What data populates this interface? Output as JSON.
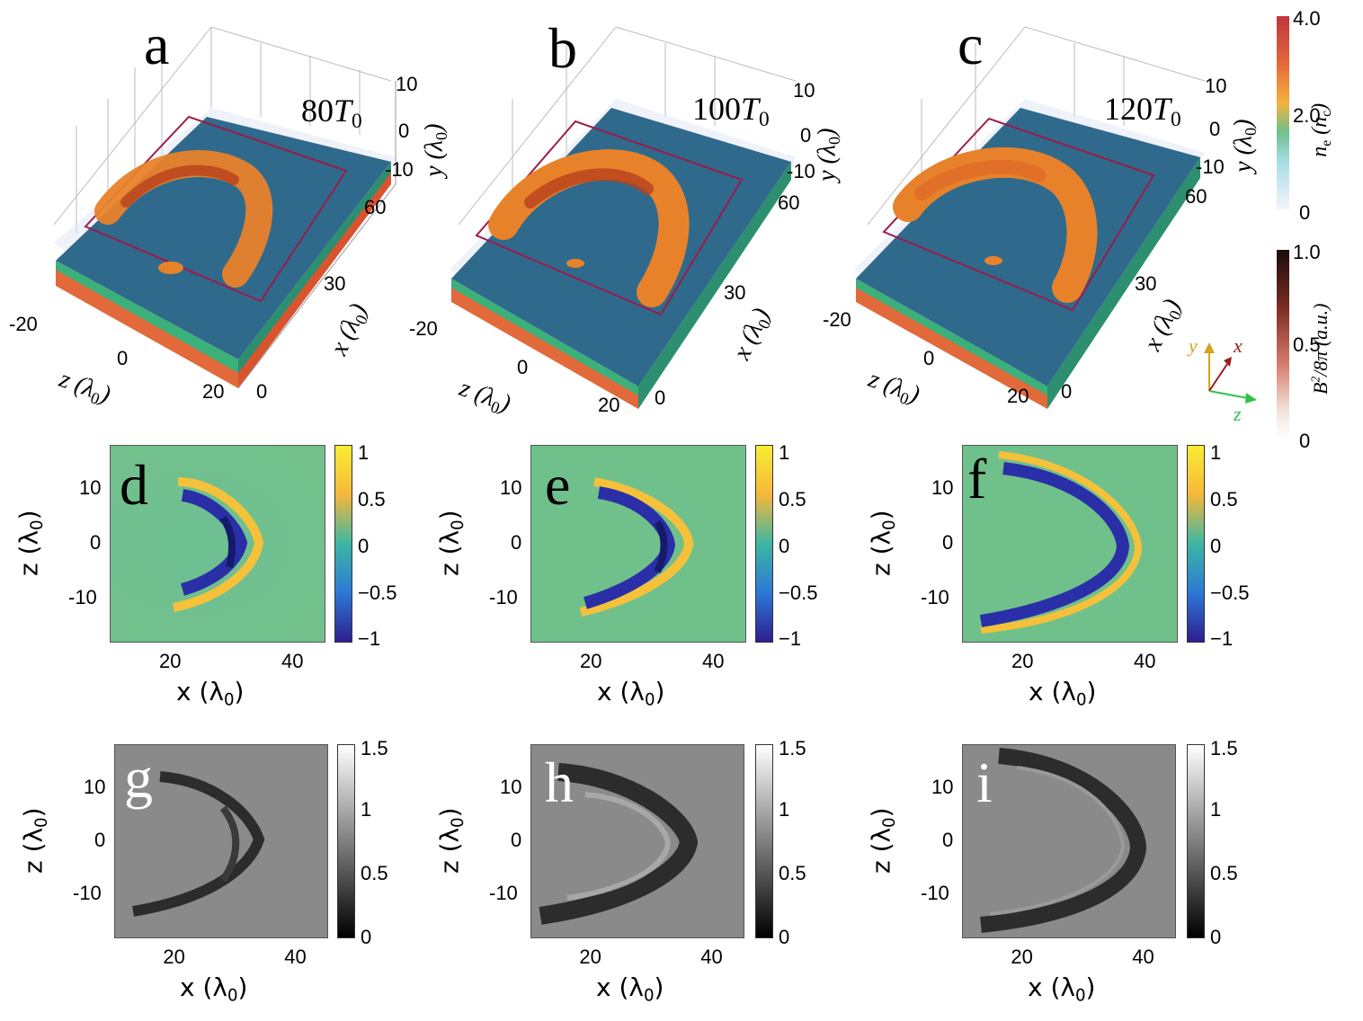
{
  "figure": {
    "top_panels": [
      {
        "letter": "a",
        "time": "80",
        "time_unit": "T",
        "time_sub": "0"
      },
      {
        "letter": "b",
        "time": "100",
        "time_unit": "T",
        "time_sub": "0"
      },
      {
        "letter": "c",
        "time": "120",
        "time_unit": "T",
        "time_sub": "0"
      }
    ],
    "top_axes": {
      "y_ticks": [
        "10",
        "0",
        "-10"
      ],
      "x_ticks": [
        "60",
        "30",
        "0"
      ],
      "z_ticks": [
        "-20",
        "0",
        "20"
      ],
      "y_label": "y (λ",
      "x_label": "x (λ",
      "z_label": "z (λ",
      "label_sub": "0",
      "close": ")"
    },
    "ne_colorbar": {
      "ticks": [
        "4.0",
        "2.0",
        "0"
      ],
      "label": "n",
      "label_sub": "e",
      "label_rest": " (n",
      "label_rest_sub": "c",
      "close": ")"
    },
    "b_colorbar": {
      "ticks": [
        "1.0",
        "0.5",
        "0"
      ],
      "label": "B",
      "label_sup": "2",
      "label_rest": "/8π (a.u.)"
    },
    "triad": {
      "y": "y",
      "x": "x",
      "z": "z"
    },
    "middle_panels": [
      {
        "letter": "d"
      },
      {
        "letter": "e"
      },
      {
        "letter": "f"
      }
    ],
    "middle_colorbar_ticks": [
      "1",
      "0.5",
      "0",
      "−0.5",
      "−1"
    ],
    "bottom_panels": [
      {
        "letter": "g"
      },
      {
        "letter": "h"
      },
      {
        "letter": "i"
      }
    ],
    "bottom_colorbar_ticks": [
      "1.5",
      "1",
      "0.5",
      "0"
    ],
    "map_axes": {
      "x_ticks": [
        "20",
        "40"
      ],
      "z_ticks": [
        "10",
        "0",
        "-10"
      ],
      "x_label": "x (λ",
      "z_label": "z (λ",
      "label_sub": "0",
      "close": ")"
    },
    "colors": {
      "slab_blue": "#2f6a8c",
      "arc_orange": "#e8822a",
      "arc_dark": "#b8401c",
      "frame": "#9b1b4a",
      "map_bg": "#6cc08a",
      "map_blue": "#2a2fa8",
      "map_yellow": "#f6c13a",
      "gray_bg": "#888888",
      "gray_dark": "#2c2c2c"
    }
  }
}
